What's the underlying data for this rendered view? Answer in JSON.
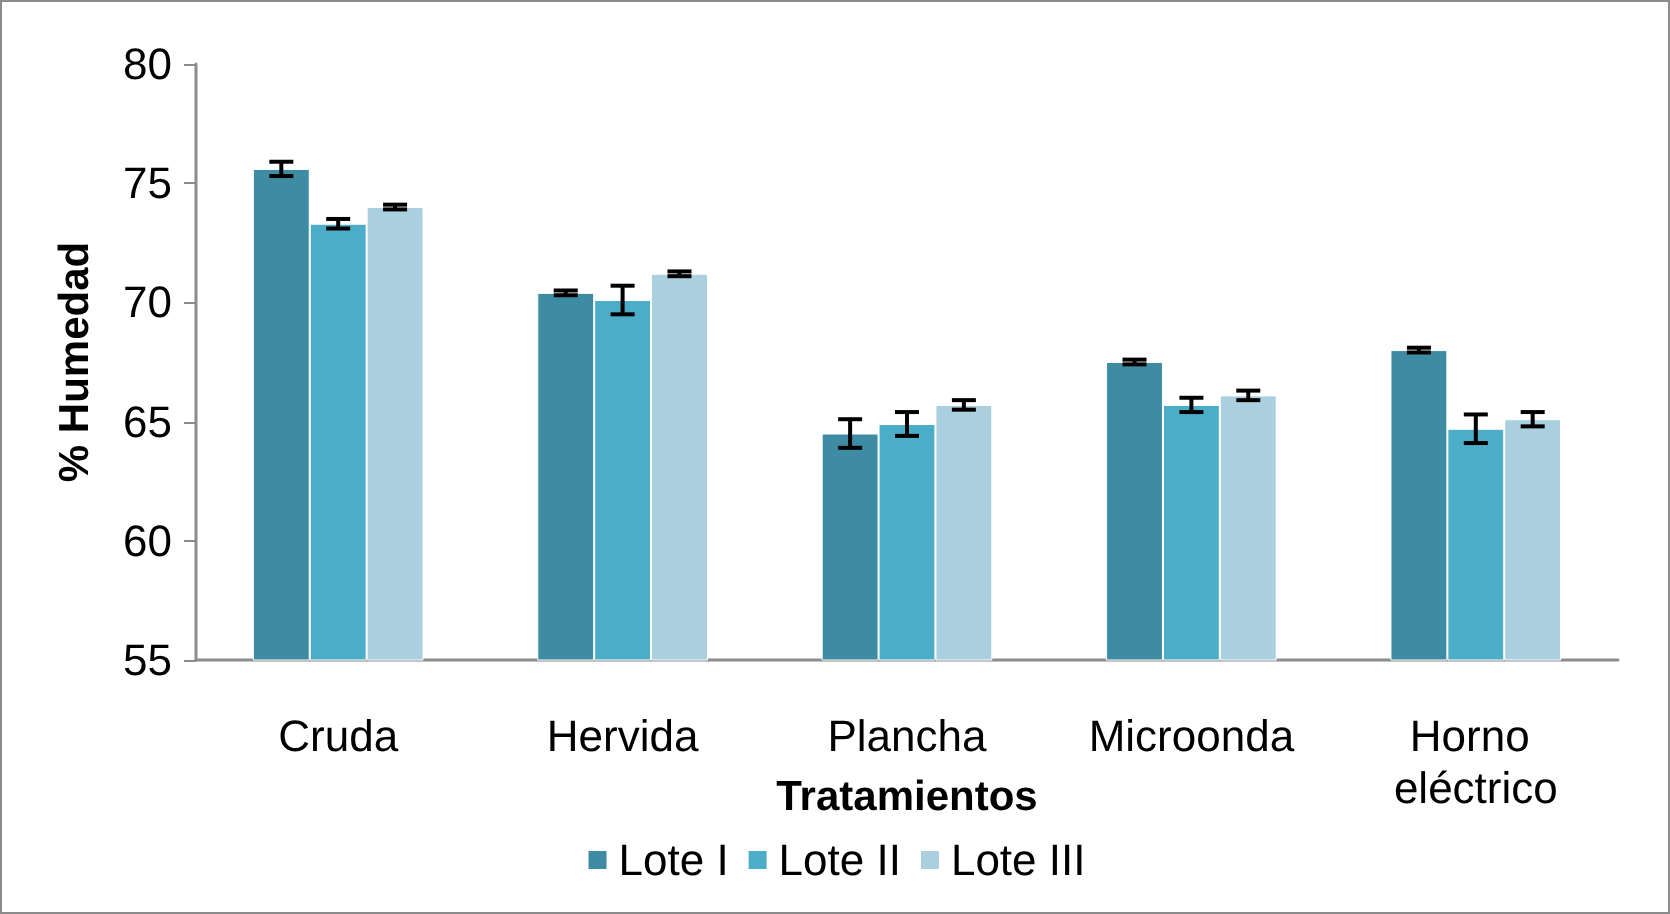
{
  "chart_data": {
    "type": "bar",
    "xlabel": "Tratamientos",
    "ylabel": "% Humedad",
    "categories": [
      "Cruda",
      "Hervida",
      "Plancha",
      "Microonda",
      "Horno eléctrico"
    ],
    "series": [
      {
        "name": "Lote I",
        "color": "#3d8ca3",
        "values": [
          75.6,
          70.4,
          64.5,
          67.5,
          68.0
        ],
        "errors": [
          0.3,
          0.1,
          0.6,
          0.1,
          0.1
        ]
      },
      {
        "name": "Lote II",
        "color": "#4badc7",
        "values": [
          73.3,
          70.1,
          64.9,
          65.7,
          64.7
        ],
        "errors": [
          0.2,
          0.6,
          0.5,
          0.3,
          0.6
        ]
      },
      {
        "name": "Lote III",
        "color": "#aacfdf",
        "values": [
          74.0,
          71.2,
          65.7,
          66.1,
          65.1
        ],
        "errors": [
          0.1,
          0.1,
          0.2,
          0.2,
          0.3
        ]
      }
    ],
    "ylim": [
      55,
      80
    ],
    "yticks": [
      55,
      60,
      65,
      70,
      75,
      80
    ],
    "grid": false,
    "legend": "bottom"
  }
}
